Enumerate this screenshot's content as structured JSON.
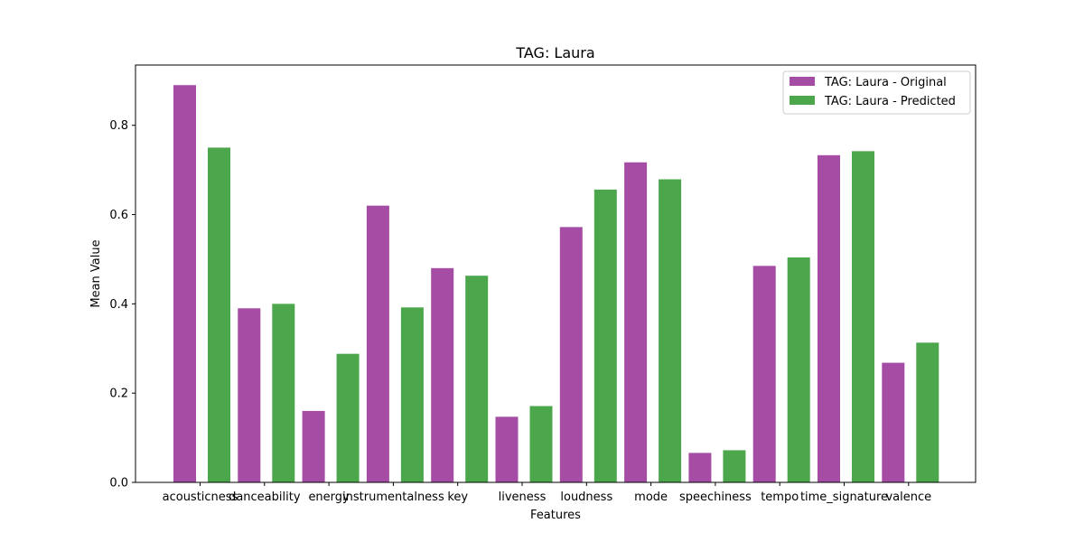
{
  "chart_data": {
    "type": "bar",
    "title": "TAG: Laura",
    "xlabel": "Features",
    "ylabel": "Mean Value",
    "ylim": [
      0,
      0.935
    ],
    "yticks": [
      "0.0",
      "0.2",
      "0.4",
      "0.6",
      "0.8"
    ],
    "ytick_values": [
      0,
      0.2,
      0.4,
      0.6,
      0.8
    ],
    "categories": [
      "acousticness",
      "danceability",
      "energy",
      "instrumentalness",
      "key",
      "liveness",
      "loudness",
      "mode",
      "speechiness",
      "tempo",
      "time_signature",
      "valence"
    ],
    "series": [
      {
        "name": "TAG: Laura - Original",
        "color": "#a54ca5",
        "values": [
          0.89,
          0.39,
          0.16,
          0.62,
          0.48,
          0.147,
          0.572,
          0.717,
          0.066,
          0.485,
          0.733,
          0.268
        ]
      },
      {
        "name": "TAG: Laura - Predicted",
        "color": "#4ca64c",
        "values": [
          0.75,
          0.4,
          0.288,
          0.392,
          0.463,
          0.171,
          0.656,
          0.679,
          0.072,
          0.504,
          0.742,
          0.313
        ]
      }
    ],
    "legend_position": "top-right",
    "grid": false
  }
}
